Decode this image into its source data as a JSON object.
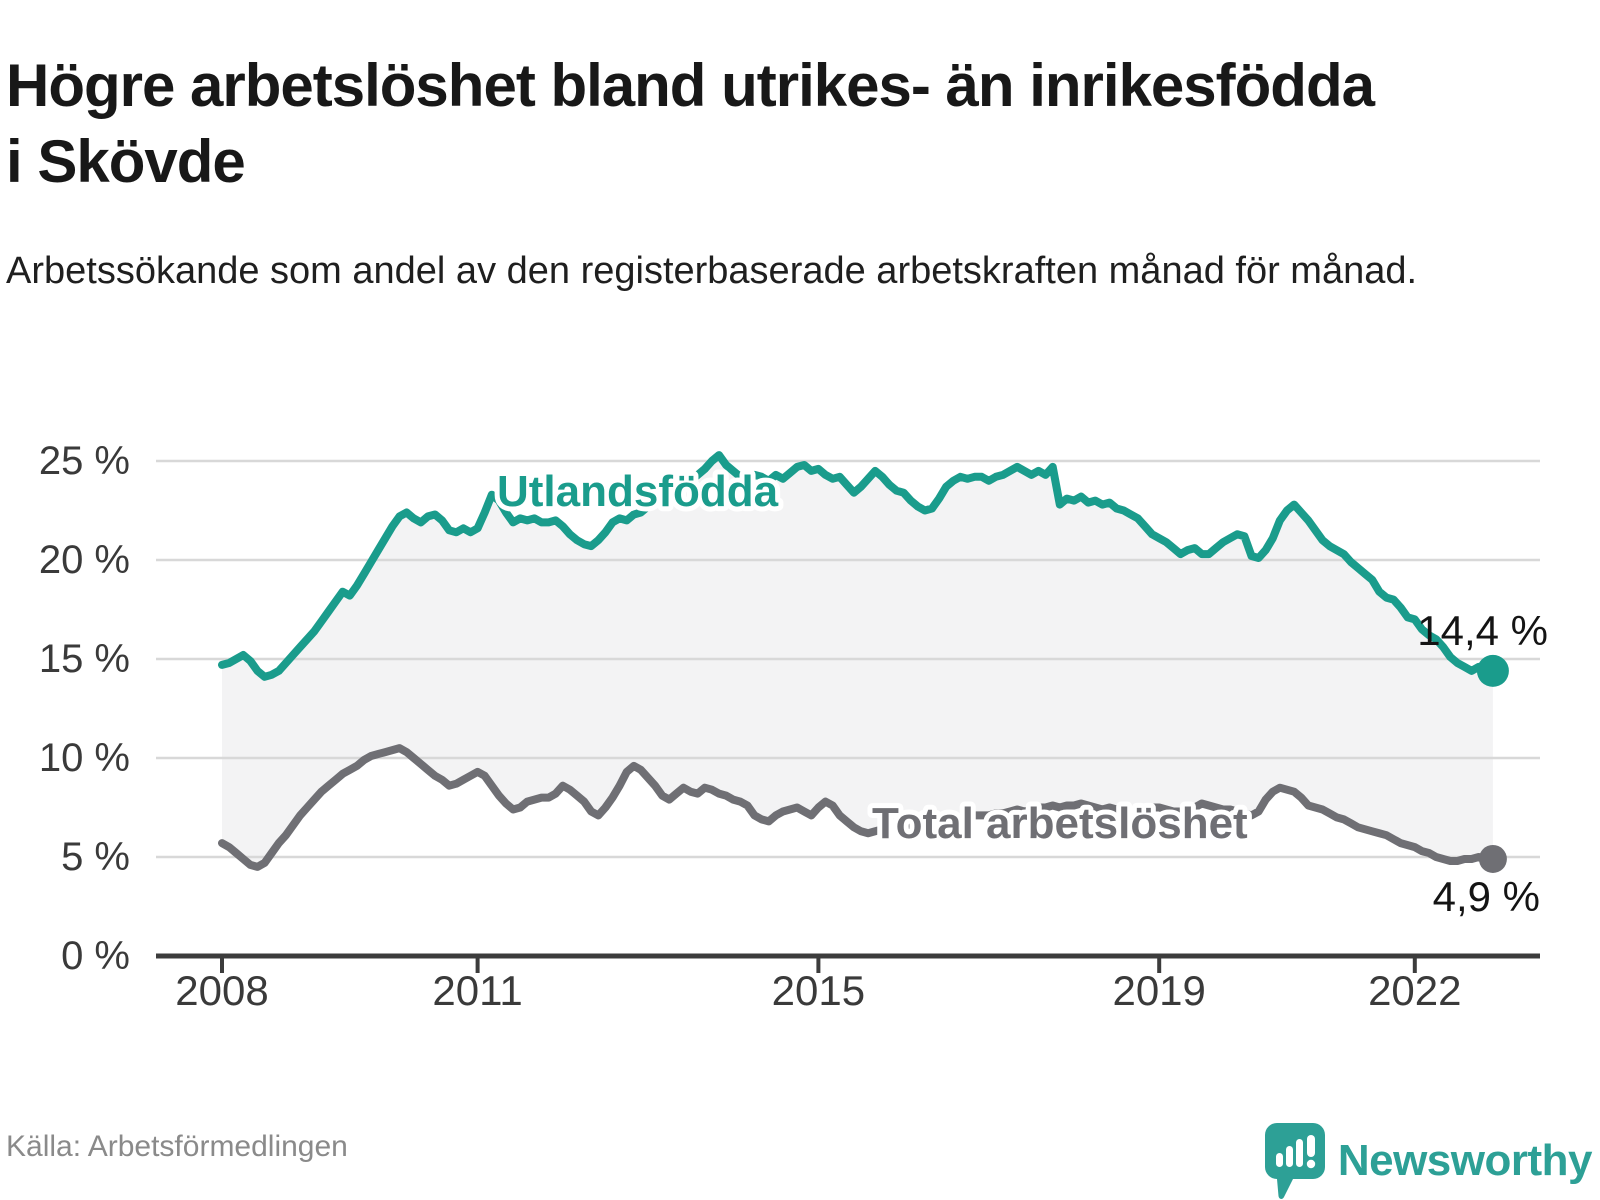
{
  "title": "Högre arbetslöshet bland utrikes- än inrikesfödda i Skövde",
  "subtitle": "Arbetssökande som andel av den registerbaserade arbetskraften månad för månad.",
  "source": "Källa: Arbetsförmedlingen",
  "logo": {
    "text": "Newsworthy",
    "icon": "newsworthy-speech-bubble-bar-chart-icon",
    "color": "#2da096"
  },
  "colors": {
    "foreign_born_line": "#1a9c8c",
    "total_line": "#6f6f74",
    "band_fill": "#f3f3f4",
    "gridline": "#d8d8d8",
    "axis": "#3c3c3c",
    "tick_label": "#3a3a3a",
    "end_label": "#141414"
  },
  "chart_data": {
    "type": "line",
    "title": "Högre arbetslöshet bland utrikes- än inrikesfödda i Skövde",
    "subtitle": "Arbetssökande som andel av den registerbaserade arbetskraften månad för månad.",
    "frequency": "monthly",
    "x_start": "2008-01",
    "x_end": "2022-12",
    "ylim": [
      0,
      26
    ],
    "grid": "horizontal",
    "legend_position": "inline-labels",
    "area_between_series": true,
    "yticks": [
      {
        "value": 0,
        "label": "0 %"
      },
      {
        "value": 5,
        "label": "5 %"
      },
      {
        "value": 10,
        "label": "10 %"
      },
      {
        "value": 15,
        "label": "15 %"
      },
      {
        "value": 20,
        "label": "20 %"
      },
      {
        "value": 25,
        "label": "25 %"
      }
    ],
    "xticks": [
      {
        "year": 2008,
        "label": "2008"
      },
      {
        "year": 2011,
        "label": "2011"
      },
      {
        "year": 2015,
        "label": "2015"
      },
      {
        "year": 2019,
        "label": "2019"
      },
      {
        "year": 2022,
        "label": "2022"
      }
    ],
    "series": [
      {
        "name": "Utlandsfödda",
        "color": "#1a9c8c",
        "end_label": "14,4 %",
        "end_value": 14.4,
        "values": [
          14.7,
          14.8,
          15.0,
          15.2,
          14.9,
          14.4,
          14.1,
          14.2,
          14.4,
          14.8,
          15.2,
          15.6,
          16.0,
          16.4,
          16.9,
          17.4,
          17.9,
          18.4,
          18.2,
          18.7,
          19.3,
          19.9,
          20.5,
          21.1,
          21.7,
          22.2,
          22.4,
          22.1,
          21.9,
          22.2,
          22.3,
          22.0,
          21.5,
          21.4,
          21.6,
          21.4,
          21.6,
          22.4,
          23.3,
          23.0,
          22.4,
          21.9,
          22.1,
          22.0,
          22.1,
          21.9,
          21.9,
          22.0,
          21.7,
          21.3,
          21.0,
          20.8,
          20.7,
          21.0,
          21.4,
          21.9,
          22.1,
          22.0,
          22.3,
          22.4,
          22.7,
          23.0,
          23.3,
          23.6,
          23.9,
          24.2,
          24.0,
          24.3,
          24.6,
          25.0,
          25.3,
          24.8,
          24.5,
          24.2,
          24.1,
          24.3,
          24.2,
          24.0,
          24.3,
          24.1,
          24.4,
          24.7,
          24.8,
          24.5,
          24.6,
          24.3,
          24.1,
          24.2,
          23.8,
          23.4,
          23.7,
          24.1,
          24.5,
          24.2,
          23.8,
          23.5,
          23.4,
          23.0,
          22.7,
          22.5,
          22.6,
          23.1,
          23.7,
          24.0,
          24.2,
          24.1,
          24.2,
          24.2,
          24.0,
          24.2,
          24.3,
          24.5,
          24.7,
          24.5,
          24.3,
          24.5,
          24.3,
          24.7,
          22.8,
          23.1,
          23.0,
          23.2,
          22.9,
          23.0,
          22.8,
          22.9,
          22.6,
          22.5,
          22.3,
          22.1,
          21.7,
          21.3,
          21.1,
          20.9,
          20.6,
          20.3,
          20.5,
          20.6,
          20.3,
          20.3,
          20.6,
          20.9,
          21.1,
          21.3,
          21.2,
          20.2,
          20.1,
          20.5,
          21.1,
          22.0,
          22.5,
          22.8,
          22.4,
          22.0,
          21.5,
          21.0,
          20.7,
          20.5,
          20.3,
          19.9,
          19.6,
          19.3,
          19.0,
          18.4,
          18.1,
          18.0,
          17.6,
          17.1,
          17.0,
          16.5,
          16.2,
          16.0,
          15.6,
          15.1,
          14.8,
          14.6,
          14.4,
          14.6,
          14.4,
          14.4
        ]
      },
      {
        "name": "Total arbetslöshet",
        "color": "#6f6f74",
        "end_label": "4,9 %",
        "end_value": 4.9,
        "values": [
          5.7,
          5.5,
          5.2,
          4.9,
          4.6,
          4.5,
          4.7,
          5.2,
          5.7,
          6.1,
          6.6,
          7.1,
          7.5,
          7.9,
          8.3,
          8.6,
          8.9,
          9.2,
          9.4,
          9.6,
          9.9,
          10.1,
          10.2,
          10.3,
          10.4,
          10.5,
          10.3,
          10.0,
          9.7,
          9.4,
          9.1,
          8.9,
          8.6,
          8.7,
          8.9,
          9.1,
          9.3,
          9.1,
          8.6,
          8.1,
          7.7,
          7.4,
          7.5,
          7.8,
          7.9,
          8.0,
          8.0,
          8.2,
          8.6,
          8.4,
          8.1,
          7.8,
          7.3,
          7.1,
          7.5,
          8.0,
          8.6,
          9.3,
          9.6,
          9.4,
          9.0,
          8.6,
          8.1,
          7.9,
          8.2,
          8.5,
          8.3,
          8.2,
          8.5,
          8.4,
          8.2,
          8.1,
          7.9,
          7.8,
          7.6,
          7.1,
          6.9,
          6.8,
          7.1,
          7.3,
          7.4,
          7.5,
          7.3,
          7.1,
          7.5,
          7.8,
          7.6,
          7.1,
          6.8,
          6.5,
          6.3,
          6.2,
          6.3,
          6.4,
          6.5,
          6.6,
          6.6,
          6.6,
          6.5,
          6.6,
          6.7,
          6.8,
          6.8,
          6.9,
          7.0,
          7.0,
          7.1,
          7.1,
          7.1,
          7.2,
          7.2,
          7.3,
          7.4,
          7.3,
          7.4,
          7.5,
          7.5,
          7.6,
          7.5,
          7.6,
          7.6,
          7.7,
          7.6,
          7.5,
          7.4,
          7.5,
          7.4,
          7.4,
          7.3,
          7.4,
          7.4,
          7.5,
          7.5,
          7.4,
          7.3,
          7.3,
          7.4,
          7.5,
          7.7,
          7.6,
          7.5,
          7.4,
          7.4,
          7.3,
          7.2,
          7.1,
          7.3,
          7.9,
          8.3,
          8.5,
          8.4,
          8.3,
          8.0,
          7.6,
          7.5,
          7.4,
          7.2,
          7.0,
          6.9,
          6.7,
          6.5,
          6.4,
          6.3,
          6.2,
          6.1,
          5.9,
          5.7,
          5.6,
          5.5,
          5.3,
          5.2,
          5.0,
          4.9,
          4.8,
          4.8,
          4.9,
          4.9,
          5.0,
          4.9,
          4.9
        ]
      }
    ]
  }
}
